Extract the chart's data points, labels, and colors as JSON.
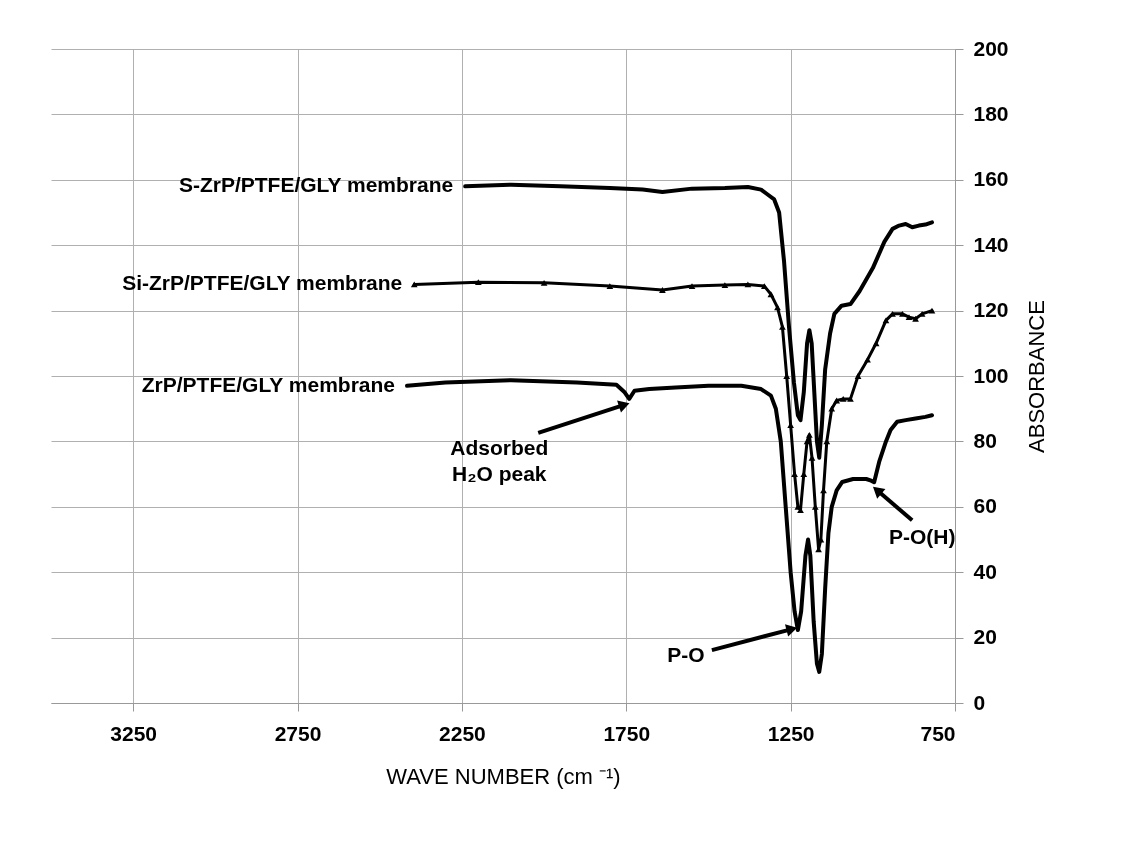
{
  "chart_data": {
    "type": "line",
    "xlabel": "WAVE NUMBER (cm ⁻¹)",
    "ylabel": "ABSORBANCE",
    "xlim": [
      3500,
      750
    ],
    "xticks": [
      3250,
      2750,
      2250,
      1750,
      1250,
      750
    ],
    "ylim": [
      0,
      200
    ],
    "yticks": [
      0,
      20,
      40,
      60,
      80,
      100,
      120,
      140,
      160,
      180,
      200
    ],
    "grid": true,
    "line_style": "solid",
    "series": [
      {
        "name": "S-ZrP/PTFE/GLY membrane",
        "color": "#000000",
        "x": [
          2240,
          2100,
          1950,
          1800,
          1700,
          1640,
          1550,
          1450,
          1380,
          1340,
          1320,
          1300,
          1285,
          1270,
          1255,
          1240,
          1228,
          1220,
          1210,
          1200,
          1193,
          1186,
          1178,
          1170,
          1163,
          1155,
          1145,
          1130,
          1117,
          1095,
          1068,
          1040,
          1000,
          965,
          940,
          920,
          900,
          880,
          860,
          840,
          820
        ],
        "values": [
          158,
          158.5,
          158,
          157.5,
          157,
          156.3,
          157.3,
          157.5,
          157.8,
          157,
          155.5,
          154,
          150,
          135,
          115,
          98,
          88,
          86.5,
          95,
          110,
          114,
          110,
          95,
          80,
          75,
          85,
          102,
          113,
          119,
          121.5,
          122,
          126,
          133,
          141,
          145,
          146,
          146.5,
          145.5,
          146,
          146.3,
          147
        ]
      },
      {
        "name": "Si-ZrP/PTFE/GLY membrane",
        "color": "#000000",
        "marker": "triangle",
        "x": [
          2395,
          2200,
          2000,
          1800,
          1640,
          1550,
          1450,
          1380,
          1330,
          1310,
          1290,
          1275,
          1262,
          1250,
          1238,
          1228,
          1220,
          1210,
          1200,
          1193,
          1185,
          1175,
          1165,
          1158,
          1150,
          1140,
          1125,
          1110,
          1090,
          1068,
          1045,
          1016,
          990,
          960,
          940,
          910,
          890,
          870,
          850,
          820
        ],
        "values": [
          128,
          128.7,
          128.5,
          127.5,
          126.3,
          127.5,
          127.8,
          128,
          127.5,
          125,
          121,
          115,
          100,
          85,
          70,
          60,
          59,
          70,
          80,
          82,
          75,
          60,
          47,
          50,
          65,
          80,
          90,
          92.5,
          93,
          93,
          100,
          105,
          110,
          117,
          119,
          119,
          118,
          117.5,
          119,
          120
        ]
      },
      {
        "name": "ZrP/PTFE/GLY membrane",
        "color": "#000000",
        "x": [
          2417,
          2300,
          2100,
          1900,
          1780,
          1755,
          1741,
          1725,
          1680,
          1600,
          1500,
          1400,
          1340,
          1310,
          1295,
          1280,
          1265,
          1250,
          1238,
          1228,
          1218,
          1205,
          1197,
          1190,
          1180,
          1170,
          1163,
          1155,
          1145,
          1135,
          1125,
          1110,
          1093,
          1060,
          1020,
          1005,
          996,
          980,
          960,
          946,
          926,
          900,
          870,
          840,
          820
        ],
        "values": [
          97,
          98,
          98.7,
          98,
          97.3,
          95,
          93,
          95.5,
          96,
          96.5,
          97,
          97,
          96,
          94,
          90,
          80,
          60,
          40,
          28,
          22.3,
          28,
          45,
          50,
          45,
          25,
          12,
          9.5,
          15,
          35,
          52,
          60,
          65,
          67.6,
          68.5,
          68.5,
          68,
          67.5,
          74,
          80,
          83.5,
          86,
          86.5,
          87,
          87.5,
          88
        ]
      }
    ],
    "annotations": [
      {
        "text": "Adsorbed\nH₂O peak",
        "x": 1741,
        "y": 93
      },
      {
        "text": "P-O",
        "x": 1228,
        "y": 22.3
      },
      {
        "text": "P-O(H)",
        "x": 996,
        "y": 67.5
      }
    ]
  }
}
